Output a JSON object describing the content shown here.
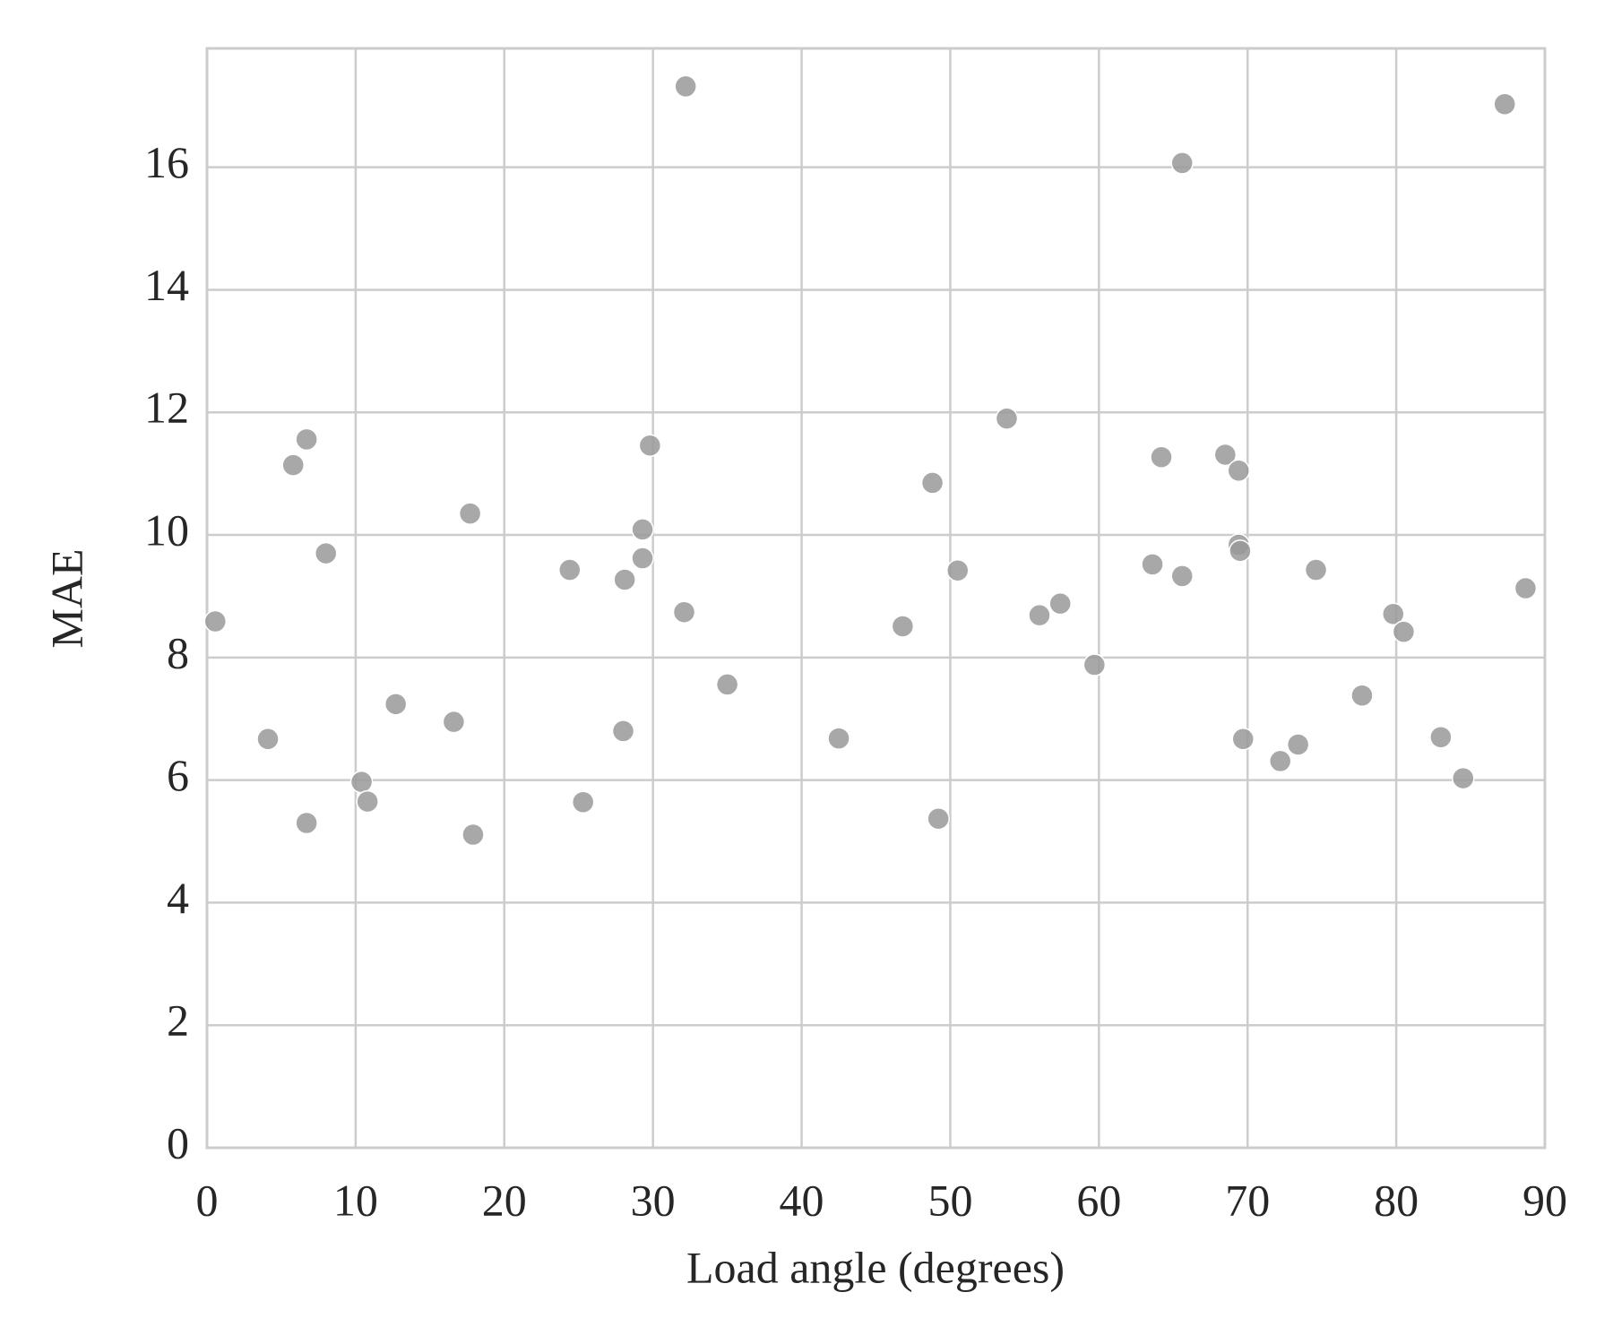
{
  "chart_data": {
    "type": "scatter",
    "x_label": "Load angle (degrees)",
    "y_label": "MAE",
    "x": [
      0.56,
      4.1,
      5.8,
      6.7,
      6.7,
      8.0,
      10.4,
      10.8,
      12.7,
      16.6,
      17.7,
      17.9,
      24.4,
      25.3,
      28.0,
      28.1,
      29.3,
      29.3,
      29.8,
      32.1,
      32.2,
      35.0,
      42.5,
      46.8,
      48.8,
      49.2,
      50.5,
      53.8,
      56.0,
      57.4,
      59.7,
      63.6,
      64.2,
      65.6,
      65.6,
      68.5,
      69.4,
      69.4,
      69.5,
      69.7,
      72.2,
      73.4,
      74.6,
      77.7,
      79.8,
      80.5,
      83.0,
      84.5,
      87.3,
      88.7
    ],
    "values": [
      8.59,
      6.67,
      11.14,
      11.56,
      5.3,
      9.7,
      5.97,
      5.65,
      7.24,
      6.95,
      10.35,
      5.11,
      9.43,
      5.64,
      6.8,
      9.27,
      10.09,
      9.62,
      11.46,
      8.74,
      17.32,
      7.56,
      6.68,
      8.51,
      10.85,
      5.37,
      9.42,
      11.9,
      8.69,
      8.88,
      7.88,
      9.52,
      11.27,
      9.33,
      16.07,
      11.31,
      11.05,
      9.84,
      9.74,
      6.67,
      6.31,
      6.58,
      9.43,
      7.38,
      8.71,
      8.42,
      6.7,
      6.03,
      17.03,
      9.13
    ],
    "color": "#999999",
    "xlim": [
      0,
      90
    ],
    "xticks": [
      0,
      10,
      20,
      30,
      40,
      50,
      60,
      70,
      80,
      90
    ],
    "ylim": [
      0,
      17.94
    ],
    "yticks": [
      0,
      2,
      4,
      6,
      8,
      10,
      12,
      14,
      16
    ],
    "grid": true
  }
}
